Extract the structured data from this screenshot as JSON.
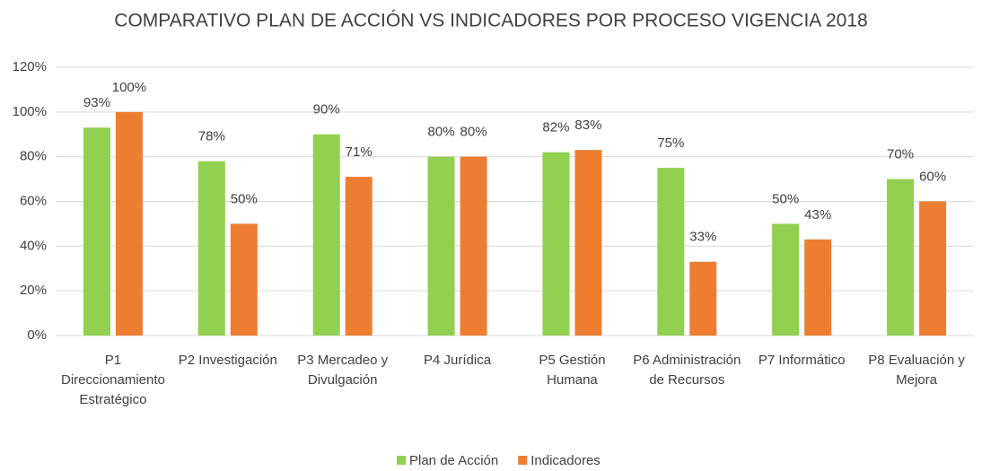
{
  "chart_data": {
    "type": "bar",
    "title": "COMPARATIVO PLAN DE ACCIÓN VS INDICADORES POR PROCESO VIGENCIA 2018",
    "categories": [
      "P1 Direccionamiento Estratégico",
      "P2 Investigación",
      "P3 Mercadeo y Divulgación",
      "P4 Jurídica",
      "P5 Gestión Humana",
      "P6 Administración de Recursos",
      "P7 Informático",
      "P8 Evaluación y Mejora"
    ],
    "series": [
      {
        "name": "Plan de Acción",
        "color": "#92d050",
        "values": [
          93,
          78,
          90,
          80,
          82,
          75,
          50,
          70
        ],
        "value_labels": [
          "93%",
          "78%",
          "90%",
          "80%",
          "82%",
          "75%",
          "50%",
          "70%"
        ]
      },
      {
        "name": "Indicadores",
        "color": "#ed7d31",
        "values": [
          100,
          50,
          71,
          80,
          83,
          33,
          43,
          60
        ],
        "value_labels": [
          "100%",
          "50%",
          "71%",
          "80%",
          "83%",
          "33%",
          "43%",
          "60%"
        ]
      }
    ],
    "ylim": [
      0,
      120
    ],
    "yticks": [
      {
        "value": 0,
        "label": "0%"
      },
      {
        "value": 20,
        "label": "20%"
      },
      {
        "value": 40,
        "label": "40%"
      },
      {
        "value": 60,
        "label": "60%"
      },
      {
        "value": 80,
        "label": "80%"
      },
      {
        "value": 100,
        "label": "100%"
      },
      {
        "value": 120,
        "label": "120%"
      }
    ],
    "grid": true,
    "legend": "bottom"
  }
}
